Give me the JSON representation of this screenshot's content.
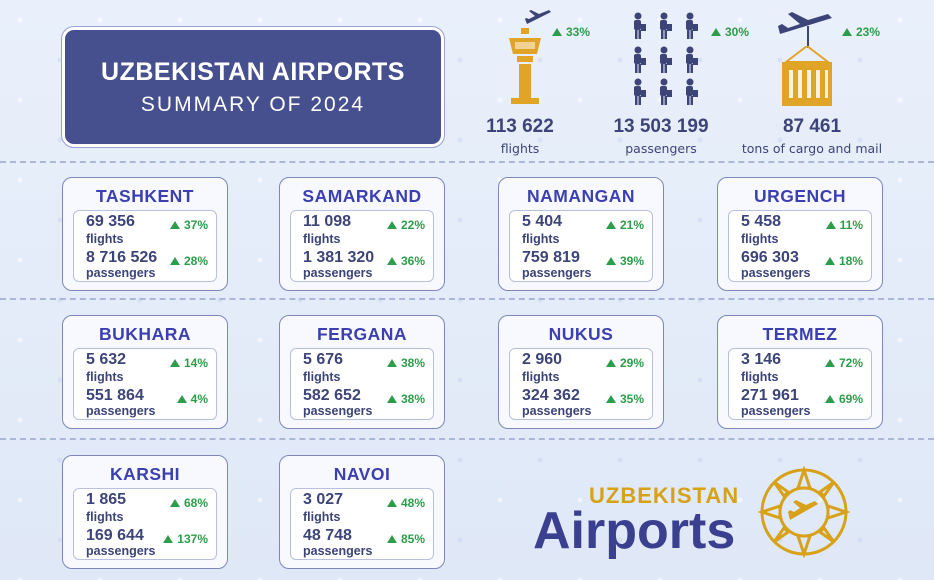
{
  "header": {
    "title": "UZBEKISTAN AIRPORTS",
    "subtitle": "SUMMARY  OF  2024"
  },
  "totals": [
    {
      "value": "113 622",
      "label": "flights",
      "change": "33%",
      "icon": "airport-tower-icon"
    },
    {
      "value": "13 503 199",
      "label": "passengers",
      "change": "30%",
      "icon": "passengers-icon"
    },
    {
      "value": "87 461",
      "label": "tons of cargo and mail",
      "change": "23%",
      "icon": "cargo-icon"
    }
  ],
  "airports": [
    {
      "name": "TASHKENT",
      "flights": "69 356",
      "flights_label": "flights",
      "flights_change": "37%",
      "passengers": "8 716 526",
      "passengers_label": "passengers",
      "passengers_change": "28%"
    },
    {
      "name": "SAMARKAND",
      "flights": "11 098",
      "flights_label": "flights",
      "flights_change": "22%",
      "passengers": "1 381 320",
      "passengers_label": "passengers",
      "passengers_change": "36%"
    },
    {
      "name": "NAMANGAN",
      "flights": "5 404",
      "flights_label": "flights",
      "flights_change": "21%",
      "passengers": "759 819",
      "passengers_label": "passengers",
      "passengers_change": "39%"
    },
    {
      "name": "URGENCH",
      "flights": "5 458",
      "flights_label": "flights",
      "flights_change": "11%",
      "passengers": "696 303",
      "passengers_label": "passengers",
      "passengers_change": "18%"
    },
    {
      "name": "BUKHARA",
      "flights": "5 632",
      "flights_label": "flights",
      "flights_change": "14%",
      "passengers": "551 864",
      "passengers_label": "passengers",
      "passengers_change": "4%"
    },
    {
      "name": "FERGANA",
      "flights": "5 676",
      "flights_label": "flights",
      "flights_change": "38%",
      "passengers": "582 652",
      "passengers_label": "passengers",
      "passengers_change": "38%"
    },
    {
      "name": "NUKUS",
      "flights": "2 960",
      "flights_label": "flights",
      "flights_change": "29%",
      "passengers": "324 362",
      "passengers_label": "passengers",
      "passengers_change": "35%"
    },
    {
      "name": "TERMEZ",
      "flights": "3 146",
      "flights_label": "flights",
      "flights_change": "72%",
      "passengers": "271 961",
      "passengers_label": "passengers",
      "passengers_change": "69%"
    },
    {
      "name": "KARSHI",
      "flights": "1 865",
      "flights_label": "flights",
      "flights_change": "68%",
      "passengers": "169 644",
      "passengers_label": "passengers",
      "passengers_change": "137%"
    },
    {
      "name": "NAVOI",
      "flights": "3 027",
      "flights_label": "flights",
      "flights_change": "48%",
      "passengers": "48 748",
      "passengers_label": "passengers",
      "passengers_change": "85%"
    }
  ],
  "logo": {
    "top": "UZBEKISTAN",
    "main": "Airports"
  },
  "colors": {
    "title_bg": "#47508f",
    "airport_name": "#3b3fb0",
    "increase": "#2e9d4b",
    "gold": "#d7a21a",
    "navy": "#3d4478"
  }
}
